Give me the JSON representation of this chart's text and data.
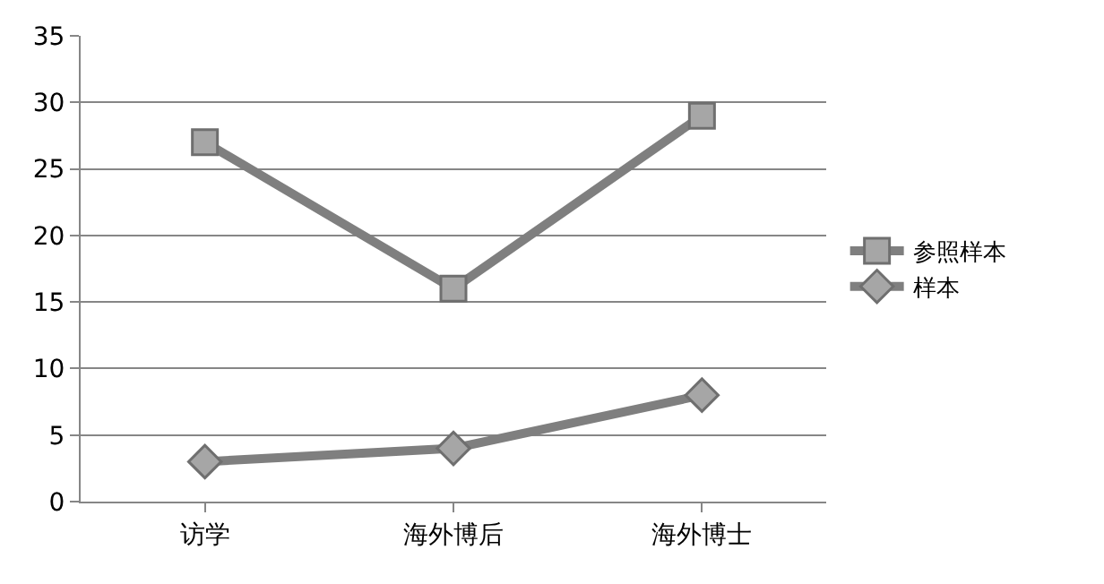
{
  "chart_data": {
    "type": "line",
    "categories": [
      "访学",
      "海外博后",
      "海外博士"
    ],
    "series": [
      {
        "name": "参照样本",
        "color": "#7f7f7f",
        "marker": "square",
        "values": [
          27,
          16,
          29
        ]
      },
      {
        "name": "样本",
        "color": "#7f7f7f",
        "marker": "diamond",
        "values": [
          3,
          4,
          8
        ]
      }
    ],
    "ylim": [
      0,
      35
    ],
    "yticks": [
      0,
      5,
      10,
      15,
      20,
      25,
      30,
      35
    ],
    "grid": "y",
    "legend": "right",
    "line_style": "solid"
  }
}
